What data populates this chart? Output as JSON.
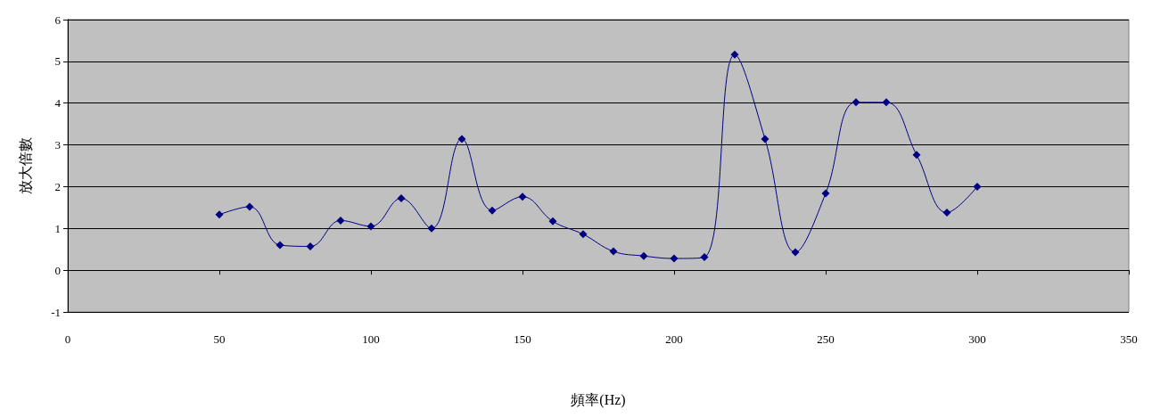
{
  "chart_data": {
    "type": "line",
    "xlabel": "頻率(Hz)",
    "ylabel": "放大倍數",
    "x": [
      50,
      60,
      70,
      80,
      90,
      100,
      110,
      120,
      130,
      140,
      150,
      160,
      170,
      180,
      190,
      200,
      210,
      220,
      230,
      240,
      250,
      260,
      270,
      280,
      290,
      300
    ],
    "series": [
      {
        "color": "#000080",
        "values": [
          1.33,
          1.52,
          0.6,
          0.57,
          1.19,
          1.05,
          1.72,
          1.0,
          3.14,
          1.43,
          1.76,
          1.17,
          0.86,
          0.45,
          0.34,
          0.28,
          0.31,
          5.16,
          3.14,
          0.43,
          1.84,
          4.02,
          4.02,
          2.76,
          1.38,
          2.0
        ]
      }
    ],
    "xlim": [
      0,
      350
    ],
    "xticks": [
      0,
      50,
      100,
      150,
      200,
      250,
      300,
      350
    ],
    "ylim": [
      -1,
      6
    ],
    "yticks": [
      -1,
      0,
      1,
      2,
      3,
      4,
      5,
      6
    ],
    "grid": "y",
    "marker": "diamond",
    "line_style": "solid"
  }
}
